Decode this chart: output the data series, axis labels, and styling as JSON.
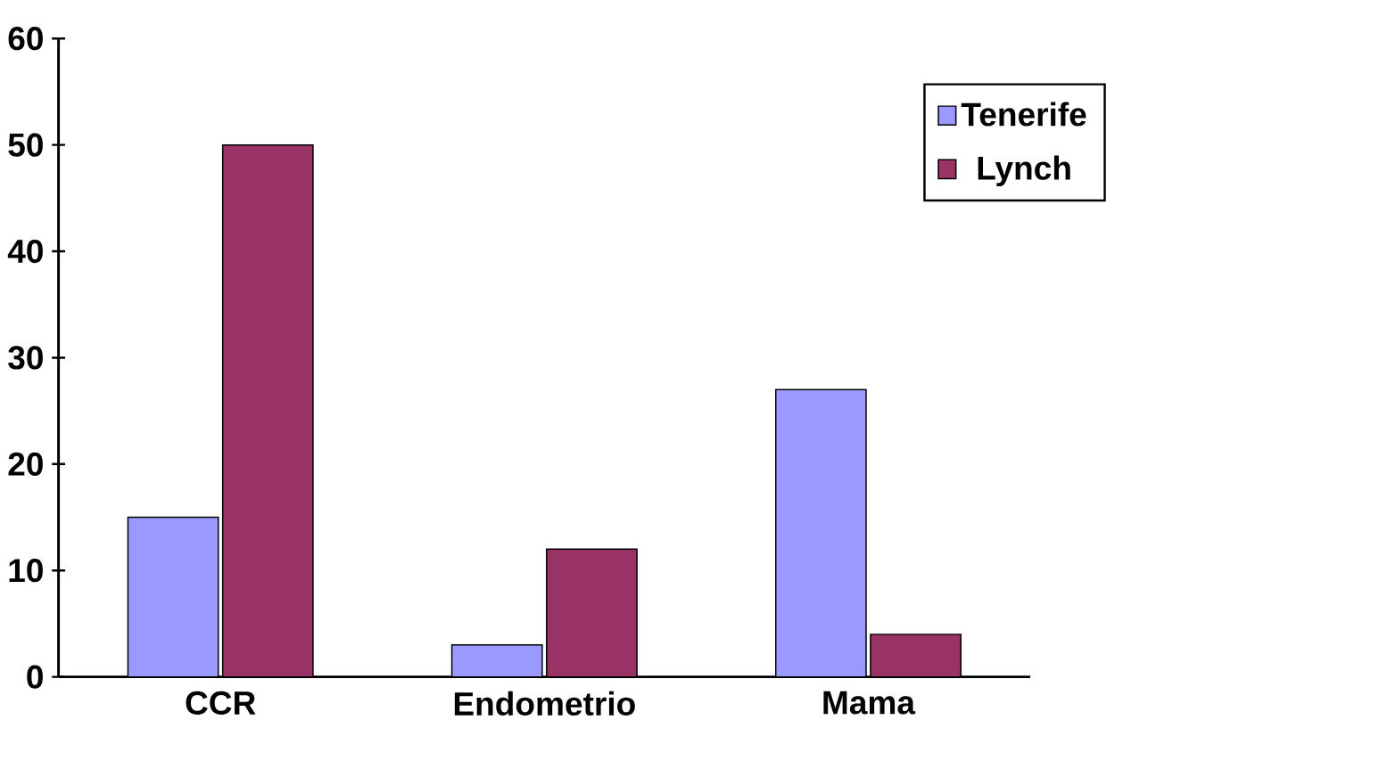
{
  "chart_data": {
    "type": "bar",
    "categories": [
      "CCR",
      "Endometrio",
      "Mama"
    ],
    "series": [
      {
        "name": "Tenerife",
        "color": "#9999ff",
        "values": [
          15,
          3,
          27
        ]
      },
      {
        "name": "Lynch",
        "color": "#993366",
        "values": [
          50,
          12,
          4
        ]
      }
    ],
    "ylim": [
      0,
      60
    ],
    "yticks": [
      0,
      10,
      20,
      30,
      40,
      50,
      60
    ],
    "grid": false,
    "legend": "top right"
  }
}
